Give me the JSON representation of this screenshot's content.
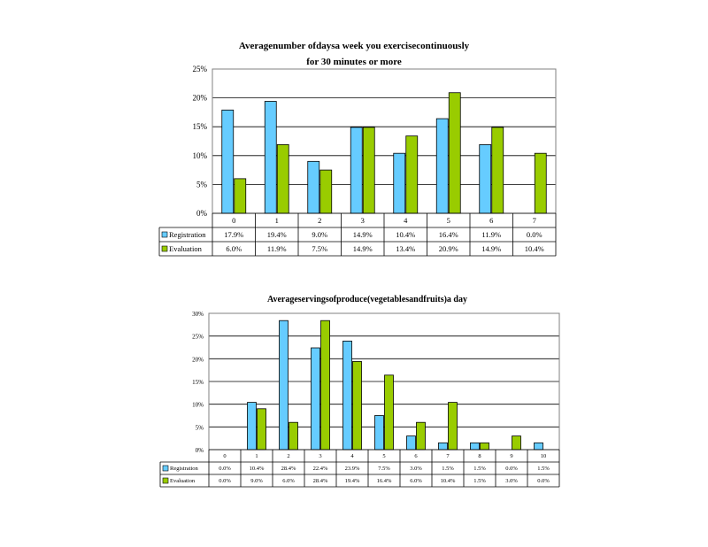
{
  "colors": {
    "registration": "#66CCFF",
    "evaluation": "#99CC00",
    "grid": "#000000"
  },
  "chart_data": [
    {
      "type": "bar",
      "title_line1": "Averagenumber              ofdaysa          week          you        exercisecontinuously",
      "title_line2": "for    30     minutes          or    more",
      "categories": [
        "0",
        "1",
        "2",
        "3",
        "4",
        "5",
        "6",
        "7"
      ],
      "ylim": [
        0,
        25
      ],
      "yticks": [
        "0%",
        "5%",
        "10%",
        "15%",
        "20%",
        "25%"
      ],
      "grid": true,
      "legend": "data-table",
      "series": [
        {
          "name": "Registration",
          "values": [
            17.9,
            19.4,
            9.0,
            14.9,
            10.4,
            16.4,
            11.9,
            0.0
          ],
          "labels": [
            "17.9%",
            "19.4%",
            "9.0%",
            "14.9%",
            "10.4%",
            "16.4%",
            "11.9%",
            "0.0%"
          ]
        },
        {
          "name": "Evaluation",
          "values": [
            6.0,
            11.9,
            7.5,
            14.9,
            13.4,
            20.9,
            14.9,
            10.4
          ],
          "labels": [
            "6.0%",
            "11.9%",
            "7.5%",
            "14.9%",
            "13.4%",
            "20.9%",
            "14.9%",
            "10.4%"
          ]
        }
      ]
    },
    {
      "type": "bar",
      "title_line1": "Averageservingsofproduce(vegetablesandfruits)a                                              day",
      "title_line2": "",
      "categories": [
        "0",
        "1",
        "2",
        "3",
        "4",
        "5",
        "6",
        "7",
        "8",
        "9",
        "10"
      ],
      "ylim": [
        0,
        30
      ],
      "yticks": [
        "0%",
        "5%",
        "10%",
        "15%",
        "20%",
        "25%",
        "30%"
      ],
      "grid": true,
      "legend": "data-table",
      "series": [
        {
          "name": "Registration",
          "values": [
            0.0,
            10.4,
            28.4,
            22.4,
            23.9,
            7.5,
            3.0,
            1.5,
            1.5,
            0.0,
            1.5
          ],
          "labels": [
            "0.0%",
            "10.4%",
            "28.4%",
            "22.4%",
            "23.9%",
            "7.5%",
            "3.0%",
            "1.5%",
            "1.5%",
            "0.0%",
            "1.5%"
          ]
        },
        {
          "name": "Evaluation",
          "values": [
            0.0,
            9.0,
            6.0,
            28.4,
            19.4,
            16.4,
            6.0,
            10.4,
            1.5,
            3.0,
            0.0
          ],
          "labels": [
            "0.0%",
            "9.0%",
            "6.0%",
            "28.4%",
            "19.4%",
            "16.4%",
            "6.0%",
            "10.4%",
            "1.5%",
            "3.0%",
            "0.0%"
          ]
        }
      ]
    }
  ]
}
